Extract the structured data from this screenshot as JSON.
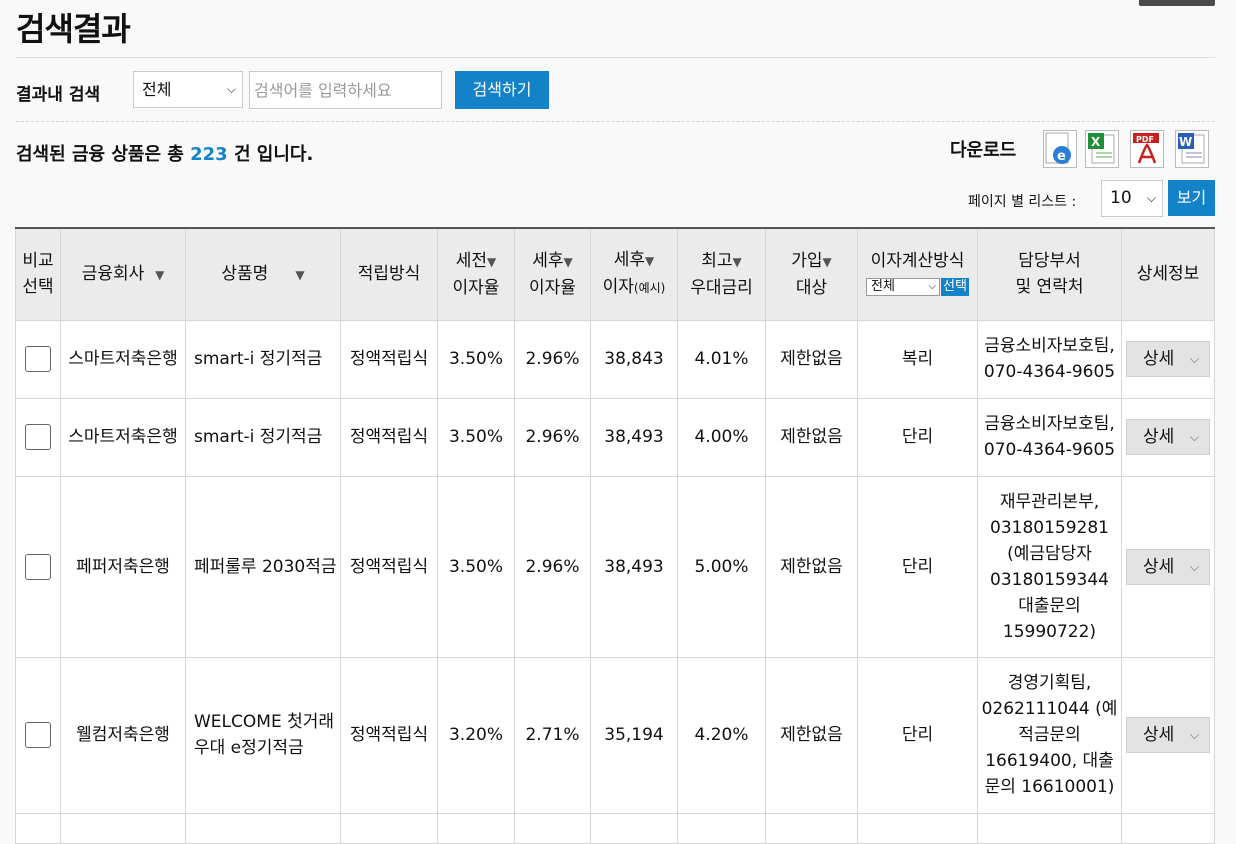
{
  "page_title": "검색결과",
  "search": {
    "label": "결과내 검색",
    "scope_selected": "전체",
    "placeholder": "검색어를 입력하세요",
    "button": "검색하기"
  },
  "result": {
    "prefix": "검색된 금융 상품은 총",
    "count": "223",
    "suffix": "건 입니다."
  },
  "download": {
    "label": "다운로드",
    "icons": [
      "ie-icon",
      "excel-icon",
      "pdf-icon",
      "word-icon"
    ]
  },
  "paging": {
    "label": "페이지 별 리스트 :",
    "selected": "10",
    "button": "보기"
  },
  "table": {
    "headers": {
      "compare": "비교 선택",
      "company": "금융회사",
      "product": "상품명",
      "method": "적립방식",
      "pretax_rate_1": "세전",
      "pretax_rate_2": "이자율",
      "aftertax_rate_1": "세후",
      "aftertax_rate_2": "이자율",
      "aftertax_interest_1": "세후",
      "aftertax_interest_2": "이자",
      "aftertax_interest_3": "(예시)",
      "max_rate_1": "최고",
      "max_rate_2": "우대금리",
      "join_1": "가입",
      "join_2": "대상",
      "calc": "이자계산방식",
      "calc_select": "전체",
      "calc_button": "선택",
      "contact_1": "담당부서",
      "contact_2": "및 연락처",
      "detail": "상세정보"
    },
    "rows": [
      {
        "company": "스마트저축은행",
        "product": "smart-i 정기적금",
        "method": "정액적립식",
        "pretax": "3.50%",
        "aftertax": "2.96%",
        "interest": "38,843",
        "max_rate": "4.01%",
        "join": "제한없음",
        "calc": "복리",
        "contact": "금융소비자보호팀, 070-4364-9605",
        "detail": "상세"
      },
      {
        "company": "스마트저축은행",
        "product": "smart-i 정기적금",
        "method": "정액적립식",
        "pretax": "3.50%",
        "aftertax": "2.96%",
        "interest": "38,493",
        "max_rate": "4.00%",
        "join": "제한없음",
        "calc": "단리",
        "contact": "금융소비자보호팀, 070-4364-9605",
        "detail": "상세"
      },
      {
        "company": "페퍼저축은행",
        "product": "페퍼룰루 2030적금",
        "method": "정액적립식",
        "pretax": "3.50%",
        "aftertax": "2.96%",
        "interest": "38,493",
        "max_rate": "5.00%",
        "join": "제한없음",
        "calc": "단리",
        "contact": "재무관리본부, 03180159281 (예금담당자 03180159344 대출문의 15990722)",
        "detail": "상세"
      },
      {
        "company": "웰컴저축은행",
        "product": "WELCOME 첫거래우대 e정기적금",
        "method": "정액적립식",
        "pretax": "3.20%",
        "aftertax": "2.71%",
        "interest": "35,194",
        "max_rate": "4.20%",
        "join": "제한없음",
        "calc": "단리",
        "contact": "경영기획팀, 0262111044 (예적금문의 16619400, 대출문의 16610001)",
        "detail": "상세"
      }
    ]
  }
}
